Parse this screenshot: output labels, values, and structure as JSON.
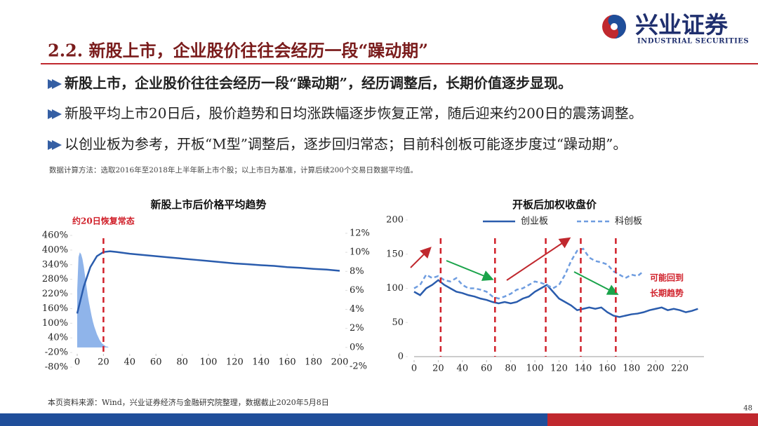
{
  "header": {
    "title": "2.2. 新股上市，企业股价往往会经历一段“躁动期”",
    "logo_text": "兴业证券",
    "logo_subtext": "INDUSTRIAL SECURITIES"
  },
  "bullets": [
    "新股上市，企业股价往往会经历一段“躁动期”，经历调整后，长期价值逐步显现。",
    "新股平均上市20日后，股价趋势和日均涨跌幅逐步恢复正常，随后迎来约200日的震荡调整。",
    "以创业板为参考，开板“M型”调整后，逐步回归常态；目前科创板可能逐步度过“躁动期”。"
  ],
  "note": "数据计算方法：选取2016年至2018年上半年新上市个股；以上市日为基准，计算后续200个交易日数据平均值。",
  "source": "本页资料来源：Wind，兴业证券经济与金融研究院整理，数据截止2020年5月8日",
  "page_number": "48",
  "chart_data": [
    {
      "type": "line",
      "title": "新股上市后价格平均趋势",
      "annotation": "约20日恢复常态",
      "annotation_x": [
        20
      ],
      "xlim": [
        0,
        200
      ],
      "xticks": [
        0,
        20,
        40,
        60,
        80,
        100,
        120,
        140,
        160,
        180,
        200
      ],
      "ylim": [
        -80,
        460
      ],
      "yticks": [
        {
          "value": -80,
          "label": "-80%"
        },
        {
          "value": -20,
          "label": "-20%"
        },
        {
          "value": 40,
          "label": "40%"
        },
        {
          "value": 100,
          "label": "100%"
        },
        {
          "value": 160,
          "label": "160%"
        },
        {
          "value": 220,
          "label": "220%"
        },
        {
          "value": 280,
          "label": "280%"
        },
        {
          "value": 340,
          "label": "340%"
        },
        {
          "value": 400,
          "label": "400%"
        },
        {
          "value": 460,
          "label": "460%"
        }
      ],
      "y2lim": [
        -2,
        12
      ],
      "y2ticks": [
        {
          "value": -2,
          "label": "-2%"
        },
        {
          "value": 0,
          "label": "0%"
        },
        {
          "value": 2,
          "label": "2%"
        },
        {
          "value": 4,
          "label": "4%"
        },
        {
          "value": 6,
          "label": "6%"
        },
        {
          "value": 8,
          "label": "8%"
        },
        {
          "value": 10,
          "label": "10%"
        },
        {
          "value": 12,
          "label": "12%"
        }
      ],
      "series": [
        {
          "type": "area",
          "axis": "y2",
          "color": "#8fb4ea",
          "x": [
            0,
            1,
            2,
            3,
            4,
            5,
            6,
            7,
            8,
            9,
            10,
            11,
            12,
            13,
            14,
            15,
            16,
            17,
            18,
            19,
            20,
            21,
            22,
            23,
            24
          ],
          "values": [
            6,
            9.5,
            10,
            9.8,
            9.3,
            8.5,
            7.5,
            6.5,
            5.5,
            4.7,
            4,
            3.3,
            2.7,
            2.2,
            1.8,
            1.4,
            1.1,
            0.8,
            0.6,
            0.4,
            0.3,
            0.2,
            0.1,
            0.1,
            0
          ]
        },
        {
          "type": "line",
          "color": "#2a5cad",
          "x": [
            0,
            5,
            10,
            15,
            20,
            25,
            30,
            40,
            50,
            60,
            70,
            80,
            90,
            100,
            110,
            120,
            130,
            140,
            150,
            160,
            170,
            180,
            190,
            200
          ],
          "values": [
            140,
            250,
            330,
            375,
            392,
            395,
            392,
            385,
            380,
            375,
            370,
            365,
            360,
            355,
            350,
            345,
            342,
            338,
            335,
            330,
            327,
            323,
            320,
            315
          ]
        }
      ]
    },
    {
      "type": "line",
      "title": "开板后加权收盘价",
      "annotation": [
        "可能回到",
        "长期趋势"
      ],
      "annotation_x": [
        22,
        67,
        109,
        138,
        167
      ],
      "xlim": [
        0,
        240
      ],
      "xticks": [
        0,
        20,
        40,
        60,
        80,
        100,
        120,
        140,
        160,
        180,
        200,
        220
      ],
      "ylim": [
        0,
        200
      ],
      "yticks": [
        0,
        50,
        100,
        150,
        200
      ],
      "series": [
        {
          "name": "创业板",
          "color": "#2a5cad",
          "style": "solid",
          "x": [
            0,
            5,
            10,
            15,
            20,
            25,
            30,
            35,
            40,
            45,
            50,
            55,
            60,
            65,
            70,
            75,
            80,
            85,
            90,
            95,
            100,
            105,
            110,
            115,
            120,
            125,
            130,
            135,
            140,
            145,
            150,
            155,
            160,
            165,
            170,
            175,
            180,
            185,
            190,
            195,
            200,
            205,
            210,
            215,
            220,
            225,
            230,
            235
          ],
          "values": [
            95,
            90,
            100,
            105,
            112,
            105,
            100,
            95,
            93,
            90,
            88,
            85,
            83,
            80,
            78,
            80,
            78,
            80,
            85,
            88,
            95,
            100,
            105,
            95,
            85,
            80,
            75,
            68,
            70,
            72,
            70,
            72,
            65,
            60,
            58,
            60,
            62,
            63,
            65,
            68,
            70,
            72,
            68,
            70,
            68,
            65,
            67,
            70
          ]
        },
        {
          "name": "科创板",
          "color": "#6f9de0",
          "style": "dashed",
          "x": [
            0,
            5,
            10,
            15,
            20,
            25,
            30,
            35,
            40,
            45,
            50,
            55,
            60,
            65,
            70,
            75,
            80,
            85,
            90,
            95,
            100,
            105,
            110,
            115,
            120,
            125,
            130,
            135,
            140,
            145,
            150,
            155,
            160,
            165,
            170,
            175,
            180,
            185,
            190
          ],
          "values": [
            100,
            105,
            120,
            115,
            118,
            112,
            110,
            115,
            105,
            100,
            100,
            98,
            95,
            88,
            85,
            88,
            92,
            98,
            100,
            105,
            110,
            108,
            105,
            100,
            105,
            120,
            140,
            155,
            158,
            145,
            140,
            138,
            135,
            125,
            120,
            115,
            120,
            118,
            125
          ]
        }
      ]
    }
  ]
}
